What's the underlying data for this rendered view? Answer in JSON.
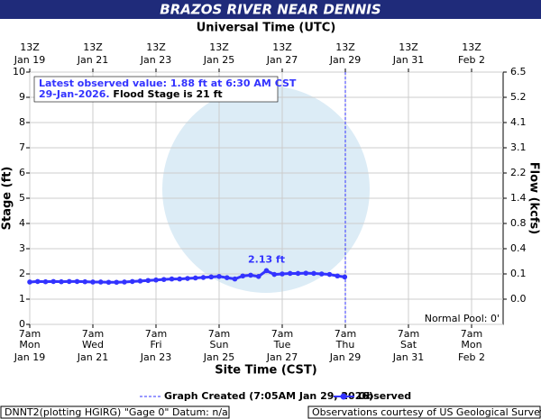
{
  "chart_data": {
    "type": "line",
    "title": "BRAZOS RIVER NEAR DENNIS",
    "top_axis_label": "Universal Time (UTC)",
    "xlabel": "Site Time (CST)",
    "ylabel": "Stage (ft)",
    "y2label": "Flow (kcfs)",
    "xlim": [
      0,
      15
    ],
    "xticks": [
      {
        "value": 0,
        "label": "Jan 19",
        "time": "7am",
        "weekday": "Mon",
        "utc_time": "13Z"
      },
      {
        "value": 2,
        "label": "Jan 21",
        "time": "7am",
        "weekday": "Wed",
        "utc_time": "13Z"
      },
      {
        "value": 4,
        "label": "Jan 23",
        "time": "7am",
        "weekday": "Fri",
        "utc_time": "13Z"
      },
      {
        "value": 6,
        "label": "Jan 25",
        "time": "7am",
        "weekday": "Sun",
        "utc_time": "13Z"
      },
      {
        "value": 8,
        "label": "Jan 27",
        "time": "7am",
        "weekday": "Tue",
        "utc_time": "13Z"
      },
      {
        "value": 10,
        "label": "Jan 29",
        "time": "7am",
        "weekday": "Thu",
        "utc_time": "13Z"
      },
      {
        "value": 12,
        "label": "Jan 31",
        "time": "7am",
        "weekday": "Sat",
        "utc_time": "13Z"
      },
      {
        "value": 14,
        "label": "Feb  2",
        "time": "7am",
        "weekday": "Mon",
        "utc_time": "13Z"
      }
    ],
    "ylim": [
      0,
      10
    ],
    "yticks": [
      0,
      1,
      2,
      3,
      4,
      5,
      6,
      7,
      8,
      9,
      10
    ],
    "y2ticks": [
      {
        "value": 0,
        "label": "0.0"
      },
      0.1,
      0.4,
      0.8,
      1.4,
      2.2,
      3.1,
      4.1,
      5.2,
      6.5
    ],
    "grid": true,
    "x": [
      0,
      0.25,
      0.5,
      0.75,
      1,
      1.25,
      1.5,
      1.75,
      2,
      2.25,
      2.5,
      2.75,
      3,
      3.25,
      3.5,
      3.75,
      4,
      4.25,
      4.5,
      4.75,
      5,
      5.25,
      5.5,
      5.75,
      6,
      6.25,
      6.5,
      6.75,
      7,
      7.25,
      7.5,
      7.75,
      8,
      8.25,
      8.5,
      8.75,
      9,
      9.25,
      9.5,
      9.75,
      9.98
    ],
    "series": [
      {
        "name": "Observed",
        "color": "#3333ff",
        "values": [
          1.68,
          1.7,
          1.69,
          1.7,
          1.69,
          1.7,
          1.7,
          1.69,
          1.68,
          1.68,
          1.67,
          1.67,
          1.68,
          1.7,
          1.72,
          1.74,
          1.76,
          1.78,
          1.8,
          1.8,
          1.82,
          1.84,
          1.86,
          1.88,
          1.9,
          1.85,
          1.8,
          1.92,
          1.95,
          1.9,
          2.13,
          1.98,
          2.0,
          2.02,
          2.02,
          2.03,
          2.02,
          2.0,
          1.98,
          1.92,
          1.88
        ]
      }
    ],
    "peak_label": "2.13 ft",
    "created_x": 10,
    "created_label": "Graph Created (7:05AM Jan 29, 2026)",
    "info_line1": "Latest observed value: 1.88 ft at 6:30 AM CST",
    "info_line2a": "29-Jan-2026.",
    "info_line2b": " Flood Stage is 21 ft",
    "normal_pool": "Normal Pool: 0'",
    "footer_left": "DNNT2(plotting HGIRG) \"Gage 0\" Datum: n/a",
    "footer_right": "Observations courtesy of US Geological Survey"
  }
}
